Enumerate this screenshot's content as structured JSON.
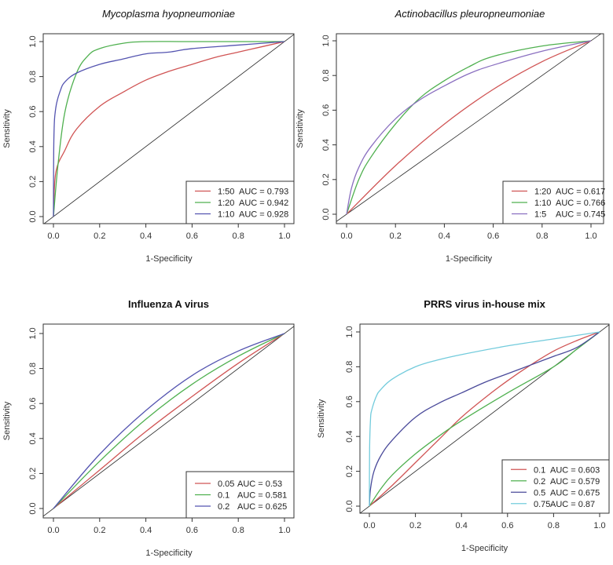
{
  "chart_data": [
    {
      "type": "line",
      "title": "Mycoplasma hyopneumoniae",
      "title_style": "italic",
      "xlabel": "1-Specificity",
      "ylabel": "Sensitivity",
      "xlim": [
        0,
        1
      ],
      "ylim": [
        0,
        1
      ],
      "xticks": [
        "0.0",
        "0.2",
        "0.4",
        "0.6",
        "0.8",
        "1.0"
      ],
      "yticks": [
        "0.0",
        "0.2",
        "0.4",
        "0.6",
        "0.8",
        "1.0"
      ],
      "legend_position": "bottom-right",
      "reference_line": "diagonal",
      "series": [
        {
          "name": "1:50",
          "auc_label": "AUC = 0.793",
          "color": "#d05454",
          "x": [
            0,
            0.01,
            0.05,
            0.1,
            0.2,
            0.3,
            0.4,
            0.5,
            0.6,
            0.7,
            0.8,
            0.9,
            1
          ],
          "y": [
            0,
            0.25,
            0.38,
            0.5,
            0.63,
            0.71,
            0.78,
            0.83,
            0.87,
            0.91,
            0.94,
            0.97,
            1
          ]
        },
        {
          "name": "1:20",
          "auc_label": "AUC = 0.942",
          "color": "#4fb04f",
          "x": [
            0,
            0.02,
            0.05,
            0.1,
            0.15,
            0.2,
            0.3,
            0.4,
            0.6,
            1
          ],
          "y": [
            0,
            0.3,
            0.6,
            0.82,
            0.92,
            0.96,
            0.99,
            1,
            1,
            1
          ]
        },
        {
          "name": "1:10",
          "auc_label": "AUC = 0.928",
          "color": "#5454b0",
          "x": [
            0,
            0.002,
            0.01,
            0.03,
            0.05,
            0.1,
            0.2,
            0.3,
            0.4,
            0.5,
            0.6,
            0.8,
            1
          ],
          "y": [
            0,
            0.45,
            0.62,
            0.72,
            0.77,
            0.82,
            0.87,
            0.9,
            0.93,
            0.94,
            0.96,
            0.98,
            1
          ]
        }
      ]
    },
    {
      "type": "line",
      "title": "Actinobacillus pleuropneumoniae",
      "title_style": "italic",
      "xlabel": "1-Specificity",
      "ylabel": "Sensitivity",
      "xlim": [
        0,
        1
      ],
      "ylim": [
        0,
        1
      ],
      "xticks": [
        "0.0",
        "0.2",
        "0.4",
        "0.6",
        "0.8",
        "1.0"
      ],
      "yticks": [
        "0.0",
        "0.2",
        "0.4",
        "0.6",
        "0.8",
        "1.0"
      ],
      "legend_position": "bottom-right",
      "reference_line": "diagonal",
      "series": [
        {
          "name": "1:20",
          "auc_label": "AUC = 0.617",
          "color": "#d05454",
          "x": [
            0,
            0.2,
            0.4,
            0.6,
            0.8,
            1
          ],
          "y": [
            0,
            0.28,
            0.52,
            0.72,
            0.88,
            1
          ]
        },
        {
          "name": "1:10",
          "auc_label": "AUC = 0.766",
          "color": "#4fb04f",
          "x": [
            0,
            0.05,
            0.1,
            0.2,
            0.3,
            0.4,
            0.5,
            0.6,
            0.8,
            1
          ],
          "y": [
            0,
            0.2,
            0.33,
            0.52,
            0.67,
            0.77,
            0.85,
            0.91,
            0.97,
            1
          ]
        },
        {
          "name": "1:5",
          "auc_label": "AUC = 0.745",
          "color": "#8a6fc0",
          "x": [
            0,
            0.02,
            0.05,
            0.1,
            0.2,
            0.3,
            0.4,
            0.5,
            0.6,
            0.8,
            1
          ],
          "y": [
            0,
            0.15,
            0.27,
            0.39,
            0.55,
            0.66,
            0.74,
            0.81,
            0.86,
            0.94,
            1
          ]
        }
      ]
    },
    {
      "type": "line",
      "title": "Influenza A virus",
      "title_style": "bold",
      "xlabel": "1-Specificity",
      "ylabel": "Sensitivity",
      "xlim": [
        0,
        1
      ],
      "ylim": [
        0,
        1
      ],
      "xticks": [
        "0.0",
        "0.2",
        "0.4",
        "0.6",
        "0.8",
        "1.0"
      ],
      "yticks": [
        "0.0",
        "0.2",
        "0.4",
        "0.6",
        "0.8",
        "1.0"
      ],
      "legend_position": "bottom-right",
      "reference_line": "diagonal",
      "series": [
        {
          "name": "0.05",
          "auc_label": "AUC = 0.53",
          "color": "#d05454",
          "x": [
            0,
            0.2,
            0.4,
            0.6,
            0.8,
            1
          ],
          "y": [
            0,
            0.22,
            0.44,
            0.64,
            0.83,
            1
          ]
        },
        {
          "name": "0.1",
          "auc_label": "AUC = 0.581",
          "color": "#4fb04f",
          "x": [
            0,
            0.2,
            0.4,
            0.6,
            0.8,
            1
          ],
          "y": [
            0,
            0.27,
            0.51,
            0.71,
            0.87,
            1
          ]
        },
        {
          "name": "0.2",
          "auc_label": "AUC = 0.625",
          "color": "#5454b0",
          "x": [
            0,
            0.2,
            0.4,
            0.6,
            0.8,
            1
          ],
          "y": [
            0,
            0.31,
            0.56,
            0.76,
            0.9,
            1
          ]
        }
      ]
    },
    {
      "type": "line",
      "title": "PRRS virus in-house mix",
      "title_style": "bold",
      "xlabel": "1-Specificity",
      "ylabel": "Sensitivity",
      "xlim": [
        0,
        1
      ],
      "ylim": [
        0,
        1
      ],
      "xticks": [
        "0.0",
        "0.2",
        "0.4",
        "0.6",
        "0.8",
        "1.0"
      ],
      "yticks": [
        "0.0",
        "0.2",
        "0.4",
        "0.6",
        "0.8",
        "1.0"
      ],
      "legend_position": "bottom-right",
      "reference_line": "diagonal",
      "series": [
        {
          "name": "0.1",
          "auc_label": "AUC = 0.603",
          "color": "#d05454",
          "x": [
            0,
            0.1,
            0.2,
            0.3,
            0.4,
            0.5,
            0.6,
            0.7,
            0.8,
            0.9,
            1
          ],
          "y": [
            0,
            0.12,
            0.25,
            0.38,
            0.51,
            0.62,
            0.72,
            0.81,
            0.89,
            0.95,
            1
          ]
        },
        {
          "name": "0.2",
          "auc_label": "AUC = 0.579",
          "color": "#4fb04f",
          "x": [
            0,
            0.05,
            0.1,
            0.2,
            0.3,
            0.4,
            0.6,
            0.8,
            0.9,
            1
          ],
          "y": [
            0,
            0.1,
            0.18,
            0.3,
            0.4,
            0.49,
            0.65,
            0.8,
            0.9,
            1
          ]
        },
        {
          "name": "0.5",
          "auc_label": "AUC = 0.675",
          "color": "#4a4a9a",
          "x": [
            0,
            0.005,
            0.02,
            0.05,
            0.1,
            0.2,
            0.3,
            0.4,
            0.5,
            0.6,
            0.7,
            0.8,
            0.9,
            1
          ],
          "y": [
            0,
            0.1,
            0.2,
            0.29,
            0.38,
            0.51,
            0.59,
            0.65,
            0.71,
            0.76,
            0.81,
            0.86,
            0.91,
            1
          ]
        },
        {
          "name": "0.75",
          "auc_label": "AUC = 0.87",
          "color": "#72cbdc",
          "x": [
            0,
            0.001,
            0.005,
            0.01,
            0.03,
            0.05,
            0.1,
            0.2,
            0.3,
            0.4,
            0.6,
            0.8,
            1
          ],
          "y": [
            0,
            0.33,
            0.5,
            0.55,
            0.63,
            0.67,
            0.73,
            0.8,
            0.84,
            0.87,
            0.92,
            0.96,
            1
          ]
        }
      ]
    }
  ]
}
